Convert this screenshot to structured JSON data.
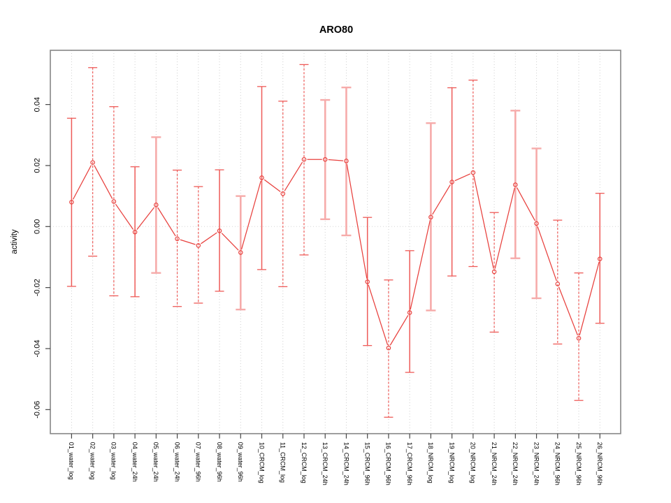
{
  "chart_data": {
    "type": "line",
    "subtype": "errorbar-line",
    "title": "ARO80",
    "xlabel": "",
    "ylabel": "activity",
    "ylim": [
      -0.068,
      0.057
    ],
    "yticks": [
      0.04,
      0.02,
      0.0,
      -0.02,
      -0.04,
      -0.06
    ],
    "ytick_labels": [
      "0.04",
      "0.02",
      "0.00",
      "-0.02",
      "-0.04",
      "-0.06"
    ],
    "legend": "none",
    "grid": {
      "vertical_dotted": true,
      "horizontal_zero_dotted": true
    },
    "categories": [
      "01_water_log",
      "02_water_log",
      "03_water_log",
      "04_water_24h",
      "05_water_24h",
      "06_water_24h",
      "07_water_96h",
      "08_water_96h",
      "09_water_96h",
      "10_CRCM_log",
      "11_CRCM_log",
      "12_CRCM_log",
      "13_CRCM_24h",
      "14_CRCM_24h",
      "15_CRCM_96h",
      "16_CRCM_96h",
      "17_CRCM_96h",
      "18_NRCM_log",
      "19_NRCM_log",
      "20_NRCM_log",
      "21_NRCM_24h",
      "22_NRCM_24h",
      "23_NRCM_24h",
      "24_NRCM_96h",
      "25_NRCM_96h",
      "26_NRCM_96h"
    ],
    "series": [
      {
        "name": "activity",
        "marker": "open-circle",
        "centers": [
          0.008,
          0.021,
          0.0082,
          -0.0018,
          0.0071,
          -0.004,
          -0.0062,
          -0.0014,
          -0.0085,
          0.016,
          0.0108,
          0.022,
          0.022,
          0.0215,
          -0.0181,
          -0.0398,
          -0.0282,
          0.0031,
          0.0146,
          0.0177,
          -0.0148,
          0.0137,
          0.001,
          -0.0188,
          -0.0366,
          -0.0106
        ],
        "upper": [
          0.0355,
          0.0521,
          0.0393,
          0.0196,
          0.0293,
          0.0185,
          0.0131,
          0.0186,
          0.01,
          0.0459,
          0.0411,
          0.0531,
          0.0415,
          0.0456,
          0.003,
          -0.0175,
          -0.0079,
          0.0339,
          0.0455,
          0.048,
          0.0046,
          0.038,
          0.0256,
          0.0021,
          -0.0152,
          0.0109
        ],
        "lower": [
          -0.0196,
          -0.0097,
          -0.0227,
          -0.023,
          -0.0152,
          -0.0262,
          -0.0251,
          -0.0212,
          -0.0272,
          -0.0141,
          -0.0197,
          -0.0093,
          0.0024,
          -0.0029,
          -0.039,
          -0.0625,
          -0.0478,
          -0.0275,
          -0.0162,
          -0.0131,
          -0.0346,
          -0.0104,
          -0.0235,
          -0.0385,
          -0.057,
          -0.0317
        ],
        "bar_styles": [
          "solid",
          "dashed",
          "dashed",
          "solid",
          "thick",
          "dashed",
          "dashed",
          "solid",
          "thick",
          "solid",
          "dashed",
          "dashed",
          "thick",
          "thick",
          "solid",
          "dashed",
          "solid",
          "thick",
          "solid",
          "dashed",
          "dashed",
          "thick",
          "thick",
          "dashed",
          "dashed",
          "solid"
        ]
      }
    ],
    "colors": {
      "line": "#e8403d",
      "marker": "#e8403d",
      "errorbar_thin": "#ee5b58",
      "errorbar_thick": "#f6abaa",
      "grid": "#cfcfcf",
      "zero_line": "#d6d6d6",
      "frame": "#868686",
      "axis": "#454545",
      "text": "#000000"
    }
  }
}
